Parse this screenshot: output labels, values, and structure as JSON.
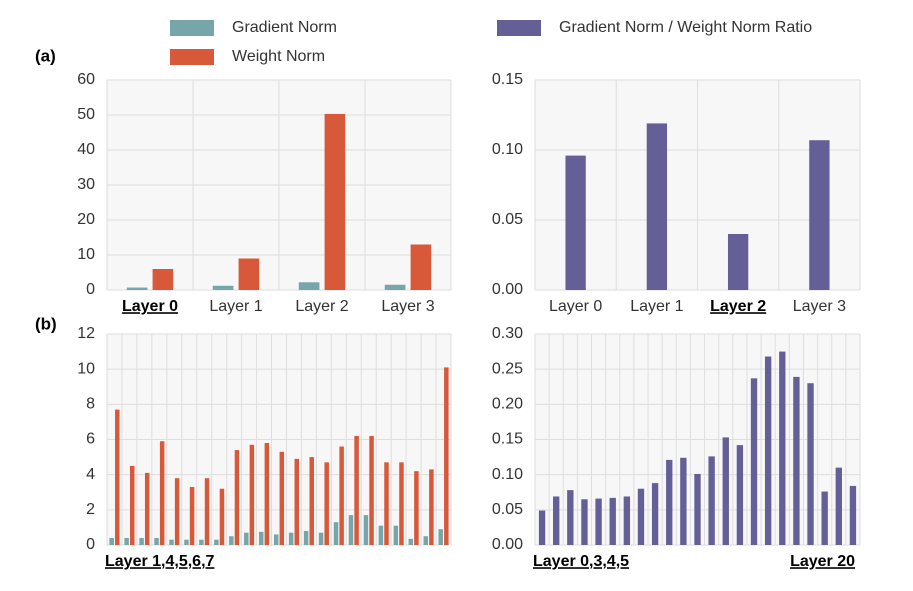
{
  "chart_data": [
    {
      "type": "bar",
      "label": "(a)",
      "categories": [
        "Layer 0",
        "Layer 1",
        "Layer 2",
        "Layer 3"
      ],
      "highlight": 0,
      "series": [
        {
          "name": "Gradient Norm",
          "color": "#76a6a9",
          "values": [
            0.7,
            1.2,
            2.2,
            1.5
          ]
        },
        {
          "name": "Weight Norm",
          "color": "#d8583a",
          "values": [
            6,
            9,
            50.3,
            13
          ]
        }
      ],
      "ylim": [
        0,
        60
      ],
      "yticks": [
        0,
        10,
        20,
        30,
        40,
        50,
        60
      ],
      "grid": true
    },
    {
      "type": "bar",
      "categories": [
        "Layer 0",
        "Layer 1",
        "Layer 2",
        "Layer 3"
      ],
      "highlight": 2,
      "series": [
        {
          "name": "Gradient Norm / Weight Norm Ratio",
          "color": "#655f97",
          "values": [
            0.096,
            0.119,
            0.04,
            0.107
          ]
        }
      ],
      "ylim": [
        0,
        0.15
      ],
      "yticks": [
        {
          "value": 0,
          "label": "0.00"
        },
        0.05,
        {
          "value": 0.1,
          "label": "0.10"
        },
        0.15
      ],
      "grid": true
    },
    {
      "type": "bar",
      "label": "(b)",
      "notes": [
        "Layer 1,4,5,6,7"
      ],
      "categories": [
        null,
        null,
        null,
        null,
        null,
        null,
        null,
        null,
        null,
        null,
        null,
        null,
        null,
        null,
        null,
        null,
        null,
        null,
        null,
        null,
        null,
        null,
        null
      ],
      "series": [
        {
          "color": "#76a6a9",
          "values": [
            0.4,
            0.4,
            0.4,
            0.4,
            0.3,
            0.3,
            0.3,
            0.3,
            0.5,
            0.7,
            0.75,
            0.6,
            0.7,
            0.8,
            0.7,
            1.3,
            1.7,
            1.7,
            1.1,
            1.1,
            0.35,
            0.5,
            0.9
          ]
        },
        {
          "color": "#d8583a",
          "values": [
            7.7,
            4.5,
            4.1,
            5.9,
            3.8,
            3.3,
            3.8,
            3.2,
            5.4,
            5.7,
            5.8,
            5.3,
            4.9,
            5.0,
            4.7,
            5.6,
            6.2,
            6.2,
            4.7,
            4.7,
            4.2,
            4.3,
            10.1
          ]
        }
      ],
      "ylim": [
        0,
        12
      ],
      "yticks": [
        0,
        2,
        4,
        6,
        8,
        10,
        12
      ],
      "grid": true
    },
    {
      "type": "bar",
      "notes": [
        "Layer 0,3,4,5",
        "Layer 20"
      ],
      "categories": [
        null,
        null,
        null,
        null,
        null,
        null,
        null,
        null,
        null,
        null,
        null,
        null,
        null,
        null,
        null,
        null,
        null,
        null,
        null,
        null,
        null,
        null,
        null
      ],
      "series": [
        {
          "color": "#655f97",
          "values": [
            0.049,
            0.069,
            0.078,
            0.065,
            0.066,
            0.067,
            0.069,
            0.08,
            0.088,
            0.121,
            0.124,
            0.101,
            0.126,
            0.153,
            0.142,
            0.237,
            0.268,
            0.275,
            0.239,
            0.23,
            0.076,
            0.11,
            0.084
          ]
        }
      ],
      "ylim": [
        0,
        0.3
      ],
      "yticks": [
        {
          "value": 0,
          "label": "0.00"
        },
        0.05,
        {
          "value": 0.1,
          "label": "0.10"
        },
        0.15,
        {
          "value": 0.2,
          "label": "0.20"
        },
        0.25,
        {
          "value": 0.3,
          "label": "0.30"
        }
      ],
      "grid": true
    }
  ]
}
